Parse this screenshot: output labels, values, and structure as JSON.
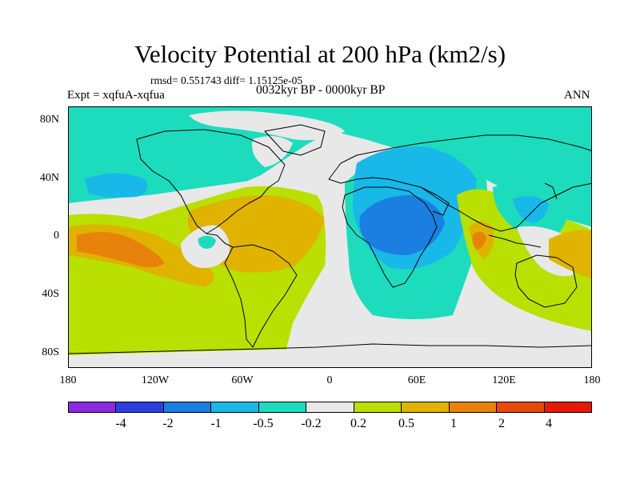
{
  "title": "Velocity Potential at 200 hPa (km2/s)",
  "stats": "rmsd= 0.551743 diff= 1.15125e-05",
  "expt": "Expt = xqfuA-xqfua",
  "period": "0032kyr BP - 0000kyr BP",
  "season": "ANN",
  "lat_labels": [
    "80N",
    "40N",
    "0",
    "40S",
    "80S"
  ],
  "lon_labels": [
    "180",
    "120W",
    "60W",
    "0",
    "60E",
    "120E",
    "180"
  ],
  "colorbar": {
    "colors": [
      "#8a2be2",
      "#2d3fe0",
      "#1a7fe0",
      "#18b8e8",
      "#1ddcbe",
      "#e8e8e8",
      "#b9e000",
      "#dfb300",
      "#e8820a",
      "#e8480c",
      "#e81808"
    ],
    "labels": [
      "-4",
      "-2",
      "-1",
      "-0.5",
      "-0.2",
      "0.2",
      "0.5",
      "1",
      "2",
      "4"
    ]
  },
  "map_colors": {
    "neg_weak": "#1ddcbe",
    "neg_light": "#18b8e8",
    "neg_mid": "#1a7fe0",
    "neutral": "#e8e8e8",
    "pos_weak": "#b9e000",
    "pos_light": "#dfb300",
    "pos_mid": "#e8820a"
  }
}
